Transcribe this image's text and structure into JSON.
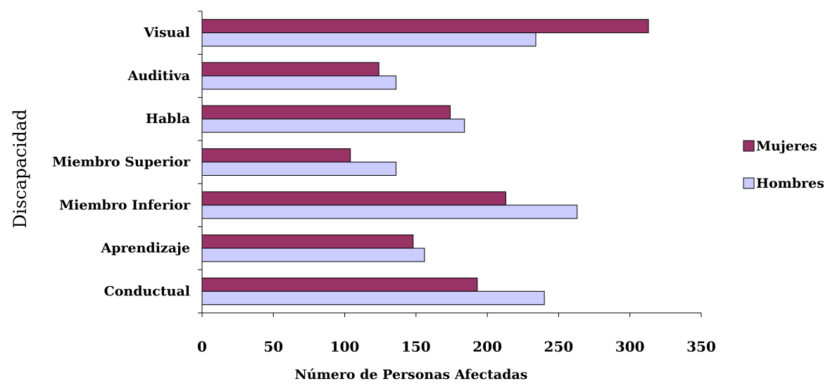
{
  "chart_data": {
    "type": "bar",
    "orientation": "horizontal",
    "categories": [
      "Visual",
      "Auditiva",
      "Habla",
      "Miembro Superior",
      "Miembro Inferior",
      "Aprendizaje",
      "Conductual"
    ],
    "series": [
      {
        "name": "Mujeres",
        "color": "#993366",
        "values": [
          313,
          124,
          174,
          104,
          213,
          148,
          193
        ]
      },
      {
        "name": "Hombres",
        "color": "#ccccff",
        "values": [
          234,
          136,
          184,
          136,
          263,
          156,
          240
        ]
      }
    ],
    "title": "",
    "xlabel": "Número de Personas Afectadas",
    "ylabel": "Discapacidad",
    "xlim": [
      0,
      350
    ],
    "xticks": [
      0,
      50,
      100,
      150,
      200,
      250,
      300,
      350
    ],
    "grid": false,
    "legend_position": "right"
  }
}
